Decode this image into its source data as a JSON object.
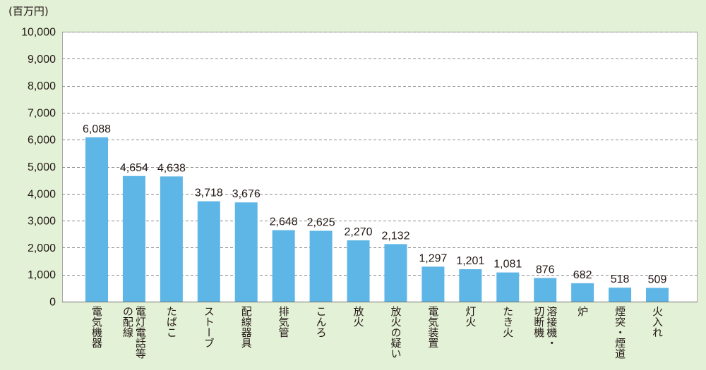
{
  "chart_data": {
    "type": "bar",
    "title": "",
    "xlabel": "",
    "ylabel": "(百万円)",
    "categories": [
      "電気機器",
      "電灯電話等\nの配線",
      "たばこ",
      "ストーブ",
      "配線器具",
      "排気管",
      "こんろ",
      "放火",
      "放火の疑い",
      "電気装置",
      "灯火",
      "たき火",
      "溶接機・\n切断機",
      "炉",
      "煙突・煙道",
      "火入れ"
    ],
    "values": [
      6088,
      4654,
      4638,
      3718,
      3676,
      2648,
      2625,
      2270,
      2132,
      1297,
      1201,
      1081,
      876,
      682,
      518,
      509
    ],
    "ylim": [
      0,
      10000
    ],
    "yticks": [
      0,
      1000,
      2000,
      3000,
      4000,
      5000,
      6000,
      7000,
      8000,
      9000,
      10000
    ],
    "grid": true,
    "data_labels": true,
    "colors": {
      "background": "#e3f1d6",
      "plot_background": "#ffffff",
      "bar": "#5eb6e6",
      "grid": "#8a8a8a"
    }
  }
}
